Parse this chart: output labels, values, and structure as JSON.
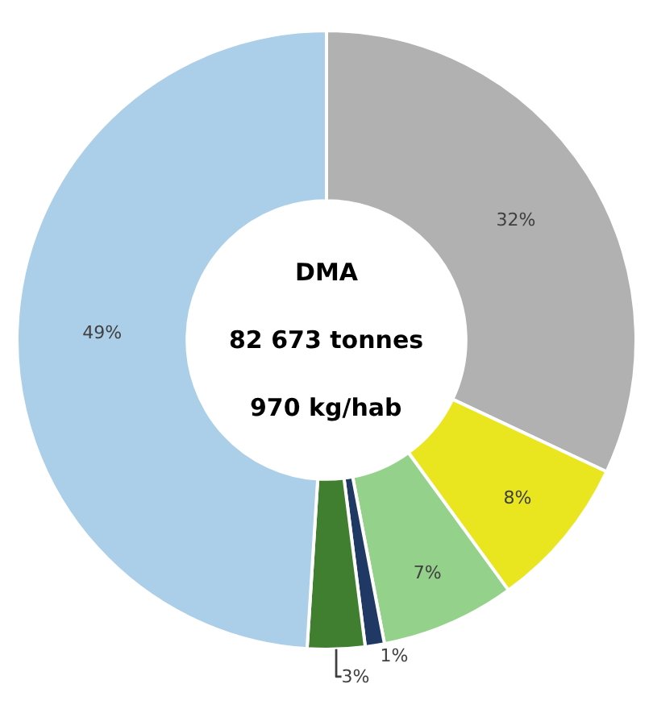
{
  "chart_data": {
    "type": "donut",
    "categories": [
      null,
      null,
      null,
      null,
      null,
      null
    ],
    "values": [
      32,
      8,
      7,
      1,
      3,
      49
    ],
    "colors": [
      "#b1b1b1",
      "#e9e620",
      "#94d28b",
      "#1f3864",
      "#3f7f2f",
      "#abcfe8"
    ],
    "value_labels": [
      "32%",
      "8%",
      "7%",
      "1%",
      "3%",
      "49%"
    ],
    "annotations": [
      "DMA",
      "82 673 tonnes",
      "970 kg/hab"
    ],
    "legend": false
  }
}
